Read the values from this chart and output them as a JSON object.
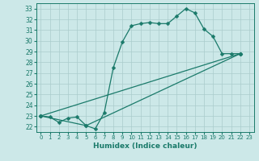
{
  "xlabel": "Humidex (Indice chaleur)",
  "bg_color": "#cce8e8",
  "grid_color": "#aacccc",
  "line_color": "#1a7a6a",
  "xlim": [
    -0.5,
    23.5
  ],
  "ylim": [
    21.5,
    33.5
  ],
  "xticks": [
    0,
    1,
    2,
    3,
    4,
    5,
    6,
    7,
    8,
    9,
    10,
    11,
    12,
    13,
    14,
    15,
    16,
    17,
    18,
    19,
    20,
    21,
    22,
    23
  ],
  "yticks": [
    22,
    23,
    24,
    25,
    26,
    27,
    28,
    29,
    30,
    31,
    32,
    33
  ],
  "line1_x": [
    0,
    1,
    2,
    3,
    4,
    5,
    6,
    7,
    8,
    9,
    10,
    11,
    12,
    13,
    14,
    15,
    16,
    17,
    18,
    19,
    20,
    21,
    22
  ],
  "line1_y": [
    23.0,
    22.9,
    22.4,
    22.8,
    22.9,
    22.1,
    21.8,
    23.3,
    27.5,
    29.9,
    31.4,
    31.6,
    31.7,
    31.6,
    31.6,
    32.3,
    33.0,
    32.6,
    31.1,
    30.4,
    28.8,
    28.8,
    28.8
  ],
  "line2_x": [
    0,
    22
  ],
  "line2_y": [
    23.0,
    28.8
  ],
  "line3_x": [
    0,
    5,
    22
  ],
  "line3_y": [
    23.0,
    22.1,
    28.8
  ],
  "markersize": 2.5,
  "linewidth": 0.9
}
